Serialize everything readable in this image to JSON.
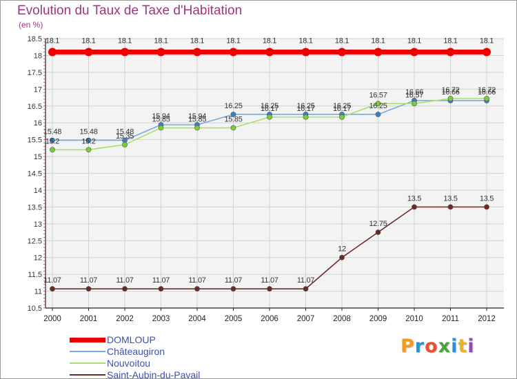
{
  "title": "Evolution du Taux de Taxe d'Habitation",
  "subtitle": "(en %)",
  "logo": {
    "letters": [
      "P",
      "r",
      "o",
      "x",
      "i",
      "t",
      "i"
    ],
    "colors": [
      "#f39a1e",
      "#2f8fd0",
      "#e8502e",
      "#4aa33a",
      "#2f8fd0",
      "#e8b51e",
      "#8a4fb5"
    ]
  },
  "chart_data": {
    "type": "line",
    "title": "Evolution du Taux de Taxe d'Habitation",
    "ylabel": "(en %)",
    "xlabel": "",
    "x": [
      "2000",
      "2001",
      "2002",
      "2003",
      "2004",
      "2005",
      "2006",
      "2007",
      "2008",
      "2009",
      "2010",
      "2011",
      "2012"
    ],
    "ylim": [
      10.5,
      18.5
    ],
    "yticks": [
      "10.5",
      "11",
      "11.5",
      "12",
      "12.5",
      "13",
      "13.5",
      "14",
      "14.5",
      "15",
      "15.5",
      "16",
      "16.5",
      "17",
      "17.5",
      "18",
      "18.5"
    ],
    "grid": true,
    "legend_position": "bottom-left",
    "series": [
      {
        "name": "DOMLOUP",
        "color": "#ee0000",
        "point_color": "#ee0000",
        "values": [
          18.1,
          18.1,
          18.1,
          18.1,
          18.1,
          18.1,
          18.1,
          18.1,
          18.1,
          18.1,
          18.1,
          18.1,
          18.1
        ],
        "labels": [
          "18.1",
          "18.1",
          "18.1",
          "18.1",
          "18.1",
          "18.1",
          "18.1",
          "18.1",
          "18.1",
          "18.1",
          "18.1",
          "18.1",
          "18.1"
        ]
      },
      {
        "name": "Châteaugiron",
        "color": "#7aaad8",
        "point_color": "#3c7fc4",
        "values": [
          15.48,
          15.48,
          15.48,
          15.94,
          15.94,
          16.25,
          16.25,
          16.25,
          16.25,
          16.25,
          16.66,
          16.66,
          16.66
        ],
        "labels": [
          "15.48",
          "15.48",
          "15.48",
          "15.94",
          "15.94",
          "16.25",
          "16.25",
          "16.25",
          "16.25",
          "16.25",
          "16.66",
          "16.66",
          "16.66"
        ]
      },
      {
        "name": "Nouvoitou",
        "color": "#a8e070",
        "point_color": "#7ccc3a",
        "values": [
          15.2,
          15.2,
          15.35,
          15.85,
          15.85,
          15.85,
          16.17,
          16.17,
          16.17,
          16.57,
          16.57,
          16.72,
          16.72
        ],
        "labels": [
          "15.2",
          "15.2",
          "15.35",
          "15.85",
          "15.85",
          "15.85",
          "16.17",
          "16.17",
          "16.17",
          "16.57",
          "16.57",
          "16.72",
          "16.72"
        ]
      },
      {
        "name": "Saint-Aubin-du-Pavail",
        "color": "#6a2a2a",
        "point_color": "#6a2a2a",
        "values": [
          11.07,
          11.07,
          11.07,
          11.07,
          11.07,
          11.07,
          11.07,
          11.07,
          12,
          12.75,
          13.5,
          13.5,
          13.5
        ],
        "labels": [
          "11.07",
          "11.07",
          "11.07",
          "11.07",
          "11.07",
          "11.07",
          "11.07",
          "11.07",
          "12",
          "12.75",
          "13.5",
          "13.5",
          "13.5"
        ]
      }
    ]
  }
}
